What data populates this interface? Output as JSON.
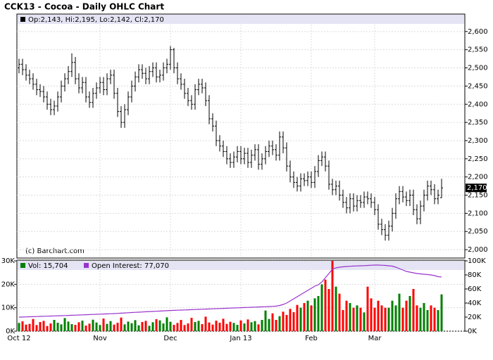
{
  "chart_data": [
    {
      "type": "ohlc",
      "title": "CCK13 - Cocoa - Daily OHLC Chart",
      "legend": "Op:2,143, Hi:2,195, Lo:2,142, Cl:2,170",
      "watermark": "(c) Barchart.com",
      "last_label": "2,170",
      "color": "#000000",
      "grid": true,
      "ylim": [
        1977,
        2648
      ],
      "yticks": [
        {
          "value": 2000,
          "label": "2,000"
        },
        {
          "value": 2050,
          "label": "2,050"
        },
        {
          "value": 2100,
          "label": "2,100"
        },
        {
          "value": 2150,
          "label": "2,150"
        },
        {
          "value": 2200,
          "label": "2,200"
        },
        {
          "value": 2250,
          "label": "2,250"
        },
        {
          "value": 2300,
          "label": "2,300"
        },
        {
          "value": 2350,
          "label": "2,350"
        },
        {
          "value": 2400,
          "label": "2,400"
        },
        {
          "value": 2450,
          "label": "2,450"
        },
        {
          "value": 2500,
          "label": "2,500"
        },
        {
          "value": 2550,
          "label": "2,550"
        },
        {
          "value": 2600,
          "label": "2,600"
        }
      ],
      "open": [
        2500,
        2510,
        2495,
        2480,
        2470,
        2455,
        2440,
        2435,
        2420,
        2400,
        2385,
        2395,
        2420,
        2450,
        2470,
        2490,
        2515,
        2470,
        2445,
        2460,
        2420,
        2405,
        2430,
        2445,
        2460,
        2440,
        2470,
        2480,
        2430,
        2380,
        2350,
        2385,
        2420,
        2450,
        2475,
        2495,
        2485,
        2470,
        2490,
        2500,
        2475,
        2480,
        2500,
        2510,
        2550,
        2500,
        2470,
        2455,
        2430,
        2410,
        2400,
        2440,
        2455,
        2445,
        2410,
        2360,
        2340,
        2300,
        2285,
        2270,
        2250,
        2240,
        2255,
        2270,
        2250,
        2265,
        2240,
        2260,
        2275,
        2235,
        2250,
        2270,
        2285,
        2275,
        2260,
        2310,
        2280,
        2230,
        2200,
        2185,
        2175,
        2195,
        2190,
        2200,
        2185,
        2215,
        2245,
        2255,
        2230,
        2180,
        2165,
        2175,
        2150,
        2130,
        2115,
        2140,
        2120,
        2135,
        2130,
        2145,
        2140,
        2130,
        2110,
        2070,
        2055,
        2040,
        2065,
        2100,
        2140,
        2160,
        2145,
        2135,
        2150,
        2110,
        2085,
        2120,
        2150,
        2175,
        2165,
        2140,
        2143
      ],
      "high": [
        2525,
        2525,
        2510,
        2495,
        2485,
        2470,
        2455,
        2450,
        2435,
        2415,
        2410,
        2435,
        2465,
        2485,
        2505,
        2540,
        2530,
        2485,
        2475,
        2475,
        2435,
        2445,
        2460,
        2475,
        2475,
        2485,
        2495,
        2495,
        2445,
        2395,
        2400,
        2435,
        2465,
        2490,
        2510,
        2510,
        2500,
        2505,
        2515,
        2515,
        2495,
        2515,
        2525,
        2560,
        2555,
        2515,
        2485,
        2470,
        2445,
        2425,
        2455,
        2470,
        2470,
        2460,
        2425,
        2375,
        2355,
        2315,
        2300,
        2285,
        2265,
        2270,
        2285,
        2285,
        2280,
        2280,
        2275,
        2290,
        2290,
        2265,
        2285,
        2300,
        2300,
        2290,
        2325,
        2325,
        2295,
        2245,
        2215,
        2200,
        2210,
        2210,
        2215,
        2215,
        2230,
        2260,
        2270,
        2270,
        2245,
        2195,
        2190,
        2190,
        2165,
        2145,
        2155,
        2155,
        2150,
        2150,
        2160,
        2160,
        2155,
        2145,
        2125,
        2085,
        2070,
        2080,
        2115,
        2155,
        2175,
        2175,
        2160,
        2165,
        2165,
        2125,
        2135,
        2165,
        2190,
        2190,
        2180,
        2165,
        2195
      ],
      "low": [
        2485,
        2480,
        2465,
        2455,
        2440,
        2425,
        2420,
        2405,
        2385,
        2370,
        2370,
        2380,
        2405,
        2435,
        2455,
        2475,
        2455,
        2430,
        2430,
        2405,
        2390,
        2390,
        2415,
        2430,
        2425,
        2425,
        2455,
        2415,
        2365,
        2335,
        2335,
        2370,
        2405,
        2435,
        2460,
        2470,
        2455,
        2455,
        2475,
        2460,
        2460,
        2465,
        2485,
        2495,
        2485,
        2455,
        2440,
        2415,
        2395,
        2385,
        2385,
        2425,
        2430,
        2395,
        2345,
        2325,
        2285,
        2270,
        2255,
        2235,
        2225,
        2225,
        2240,
        2235,
        2235,
        2225,
        2225,
        2245,
        2220,
        2220,
        2235,
        2255,
        2260,
        2245,
        2245,
        2265,
        2215,
        2185,
        2170,
        2160,
        2160,
        2175,
        2175,
        2170,
        2170,
        2200,
        2230,
        2215,
        2165,
        2150,
        2150,
        2135,
        2115,
        2100,
        2100,
        2105,
        2105,
        2115,
        2115,
        2125,
        2115,
        2095,
        2055,
        2040,
        2025,
        2025,
        2050,
        2085,
        2125,
        2130,
        2120,
        2120,
        2095,
        2070,
        2070,
        2105,
        2135,
        2150,
        2125,
        2125,
        2142
      ],
      "close": [
        2510,
        2495,
        2480,
        2470,
        2455,
        2440,
        2435,
        2420,
        2400,
        2385,
        2395,
        2420,
        2450,
        2470,
        2490,
        2515,
        2470,
        2445,
        2460,
        2420,
        2405,
        2430,
        2445,
        2460,
        2440,
        2470,
        2480,
        2430,
        2380,
        2350,
        2385,
        2420,
        2450,
        2475,
        2495,
        2485,
        2470,
        2490,
        2500,
        2475,
        2480,
        2500,
        2510,
        2550,
        2500,
        2470,
        2455,
        2430,
        2410,
        2400,
        2440,
        2455,
        2445,
        2410,
        2360,
        2340,
        2300,
        2285,
        2270,
        2250,
        2240,
        2255,
        2270,
        2250,
        2265,
        2240,
        2260,
        2275,
        2235,
        2250,
        2270,
        2285,
        2275,
        2260,
        2310,
        2280,
        2230,
        2200,
        2185,
        2175,
        2195,
        2190,
        2200,
        2185,
        2215,
        2245,
        2255,
        2230,
        2180,
        2165,
        2175,
        2150,
        2130,
        2115,
        2140,
        2120,
        2135,
        2130,
        2145,
        2140,
        2130,
        2110,
        2070,
        2055,
        2040,
        2065,
        2100,
        2140,
        2160,
        2145,
        2135,
        2150,
        2110,
        2085,
        2120,
        2150,
        2175,
        2165,
        2140,
        2150,
        2170
      ]
    },
    {
      "type": "volume",
      "categories": [
        "Oct 12",
        null,
        null,
        null,
        null,
        null,
        null,
        null,
        null,
        null,
        null,
        null,
        null,
        null,
        null,
        null,
        null,
        null,
        null,
        null,
        null,
        null,
        null,
        "Nov",
        null,
        null,
        null,
        null,
        null,
        null,
        null,
        null,
        null,
        null,
        null,
        null,
        null,
        null,
        null,
        null,
        null,
        null,
        null,
        "Dec",
        null,
        null,
        null,
        null,
        null,
        null,
        null,
        null,
        null,
        null,
        null,
        null,
        null,
        null,
        null,
        null,
        null,
        null,
        null,
        "Jan 13",
        null,
        null,
        null,
        null,
        null,
        null,
        null,
        null,
        null,
        null,
        null,
        null,
        null,
        null,
        null,
        null,
        null,
        null,
        null,
        "Feb",
        null,
        null,
        null,
        null,
        null,
        null,
        null,
        null,
        null,
        null,
        null,
        null,
        null,
        null,
        null,
        null,
        null,
        "Mar",
        null,
        null,
        null,
        null,
        null,
        null,
        null,
        null,
        null,
        null,
        null,
        null,
        null,
        null,
        null,
        null,
        null,
        null,
        null
      ],
      "up_color": "#008000",
      "down_color": "#ff0000",
      "grid": true,
      "ylim": [
        0,
        30000
      ],
      "yticks": [
        {
          "value": 0,
          "label": "0K"
        },
        {
          "value": 10000,
          "label": "10K"
        },
        {
          "value": 20000,
          "label": "20K"
        },
        {
          "value": 30000,
          "label": "30K"
        }
      ],
      "y2lim": [
        0,
        100000
      ],
      "y2ticks": [
        {
          "value": 0,
          "label": "0K"
        },
        {
          "value": 20000,
          "label": "20K"
        },
        {
          "value": 40000,
          "label": "40K"
        },
        {
          "value": 60000,
          "label": "60K"
        },
        {
          "value": 80000,
          "label": "80K"
        },
        {
          "value": 100000,
          "label": "100K"
        }
      ],
      "series": [
        {
          "name": "Vol: 15,704",
          "color": "#008000",
          "values": [
            3500,
            4200,
            2800,
            3100,
            5200,
            2600,
            3900,
            4400,
            2200,
            3300,
            4800,
            3600,
            2900,
            5600,
            4100,
            3000,
            2700,
            3800,
            4500,
            2400,
            3200,
            4900,
            3700,
            2600,
            5400,
            3100,
            4300,
            2800,
            3600,
            5800,
            2900,
            4100,
            3400,
            4700,
            2500,
            3900,
            4400,
            2300,
            3800,
            5100,
            4600,
            3300,
            5900,
            4000,
            2700,
            3500,
            4800,
            2600,
            3300,
            5700,
            3900,
            4400,
            3000,
            6200,
            3700,
            2800,
            4500,
            3600,
            5300,
            3100,
            4000,
            3500,
            2700,
            4600,
            3300,
            5000,
            3800,
            4300,
            2900,
            4800,
            8800,
            5200,
            7600,
            4800,
            6400,
            8300,
            6900,
            9500,
            8100,
            11200,
            10000,
            12000,
            13000,
            11000,
            14000,
            15000,
            20000,
            22000,
            18000,
            30000,
            19000,
            16000,
            9000,
            13000,
            12000,
            10000,
            11000,
            10000,
            8000,
            19000,
            14000,
            10000,
            13000,
            11000,
            10000,
            10000,
            13000,
            11000,
            16000,
            10000,
            13000,
            15000,
            18000,
            11000,
            10000,
            12000,
            9000,
            11000,
            10000,
            9000,
            15704
          ]
        },
        {
          "name": "Open Interest: 77,070",
          "color": "#9933cc",
          "axis": "y2",
          "values": [
            20000,
            20100,
            20300,
            20500,
            20600,
            20800,
            21000,
            21200,
            21300,
            21500,
            21700,
            21900,
            22000,
            22200,
            22400,
            22600,
            22800,
            23000,
            23200,
            23400,
            23600,
            23800,
            24000,
            24200,
            24400,
            24600,
            24800,
            25000,
            25300,
            25600,
            25900,
            26200,
            26500,
            26800,
            27000,
            27300,
            27600,
            27900,
            28100,
            28300,
            28600,
            28900,
            29100,
            29400,
            29600,
            29800,
            30000,
            30200,
            30400,
            30600,
            30800,
            31000,
            31200,
            31400,
            31600,
            31800,
            32000,
            32200,
            32400,
            32600,
            32800,
            33000,
            33200,
            33400,
            33600,
            33800,
            34000,
            34200,
            34400,
            34600,
            34800,
            35000,
            35300,
            35600,
            36500,
            38000,
            40000,
            43000,
            46000,
            49000,
            52000,
            55000,
            58000,
            61000,
            64000,
            66000,
            70000,
            76000,
            82000,
            88000,
            90000,
            91000,
            91500,
            92000,
            92300,
            92600,
            92800,
            93000,
            93200,
            93500,
            93800,
            94000,
            94000,
            93800,
            93500,
            93000,
            92500,
            91000,
            89000,
            87000,
            85000,
            84000,
            83000,
            82000,
            81500,
            81000,
            80500,
            80000,
            79000,
            77500,
            77070
          ]
        }
      ]
    }
  ]
}
